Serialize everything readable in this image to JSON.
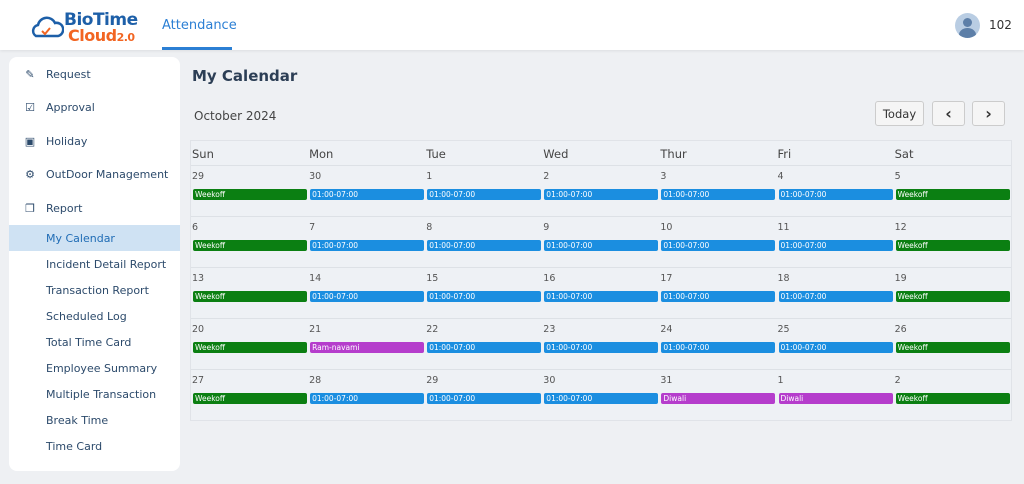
{
  "header": {
    "logo_line1": "BioTime",
    "logo_line2": "Cloud",
    "logo_version": "2.0",
    "nav_tab": "Attendance",
    "user": "102"
  },
  "sidebar": {
    "items": [
      {
        "label": "Request",
        "icon": "edit-icon"
      },
      {
        "label": "Approval",
        "icon": "checkbox-icon"
      },
      {
        "label": "Holiday",
        "icon": "calendar-plus-icon"
      },
      {
        "label": "OutDoor Management",
        "icon": "motorcycle-icon"
      },
      {
        "label": "Report",
        "icon": "report-icon"
      }
    ],
    "sub_items": [
      "My Calendar",
      "Incident Detail Report",
      "Transaction Report",
      "Scheduled Log",
      "Total Time Card",
      "Employee Summary",
      "Multiple Transaction",
      "Break Time",
      "Time Card"
    ],
    "active": "My Calendar"
  },
  "main": {
    "title": "My Calendar",
    "month": "October 2024",
    "today_label": "Today",
    "prev_label": "‹",
    "next_label": "›"
  },
  "colors": {
    "weekoff": "#0b7f12",
    "shift": "#1b8ee0",
    "holiday": "#b53dcc",
    "accent": "#2b7fd4"
  },
  "calendar": {
    "days": [
      "Sun",
      "Mon",
      "Tue",
      "Wed",
      "Thur",
      "Fri",
      "Sat"
    ],
    "weeks": [
      [
        {
          "d": "29",
          "e": "Weekoff",
          "t": "weekoff"
        },
        {
          "d": "30",
          "e": "01:00-07:00",
          "t": "shift"
        },
        {
          "d": "1",
          "e": "01:00-07:00",
          "t": "shift"
        },
        {
          "d": "2",
          "e": "01:00-07:00",
          "t": "shift"
        },
        {
          "d": "3",
          "e": "01:00-07:00",
          "t": "shift"
        },
        {
          "d": "4",
          "e": "01:00-07:00",
          "t": "shift"
        },
        {
          "d": "5",
          "e": "Weekoff",
          "t": "weekoff"
        }
      ],
      [
        {
          "d": "6",
          "e": "Weekoff",
          "t": "weekoff"
        },
        {
          "d": "7",
          "e": "01:00-07:00",
          "t": "shift"
        },
        {
          "d": "8",
          "e": "01:00-07:00",
          "t": "shift"
        },
        {
          "d": "9",
          "e": "01:00-07:00",
          "t": "shift"
        },
        {
          "d": "10",
          "e": "01:00-07:00",
          "t": "shift"
        },
        {
          "d": "11",
          "e": "01:00-07:00",
          "t": "shift"
        },
        {
          "d": "12",
          "e": "Weekoff",
          "t": "weekoff"
        }
      ],
      [
        {
          "d": "13",
          "e": "Weekoff",
          "t": "weekoff"
        },
        {
          "d": "14",
          "e": "01:00-07:00",
          "t": "shift"
        },
        {
          "d": "15",
          "e": "01:00-07:00",
          "t": "shift"
        },
        {
          "d": "16",
          "e": "01:00-07:00",
          "t": "shift"
        },
        {
          "d": "17",
          "e": "01:00-07:00",
          "t": "shift"
        },
        {
          "d": "18",
          "e": "01:00-07:00",
          "t": "shift"
        },
        {
          "d": "19",
          "e": "Weekoff",
          "t": "weekoff"
        }
      ],
      [
        {
          "d": "20",
          "e": "Weekoff",
          "t": "weekoff"
        },
        {
          "d": "21",
          "e": "Ram-navami",
          "t": "holiday"
        },
        {
          "d": "22",
          "e": "01:00-07:00",
          "t": "shift"
        },
        {
          "d": "23",
          "e": "01:00-07:00",
          "t": "shift"
        },
        {
          "d": "24",
          "e": "01:00-07:00",
          "t": "shift"
        },
        {
          "d": "25",
          "e": "01:00-07:00",
          "t": "shift"
        },
        {
          "d": "26",
          "e": "Weekoff",
          "t": "weekoff"
        }
      ],
      [
        {
          "d": "27",
          "e": "Weekoff",
          "t": "weekoff"
        },
        {
          "d": "28",
          "e": "01:00-07:00",
          "t": "shift"
        },
        {
          "d": "29",
          "e": "01:00-07:00",
          "t": "shift"
        },
        {
          "d": "30",
          "e": "01:00-07:00",
          "t": "shift"
        },
        {
          "d": "31",
          "e": "Diwali",
          "t": "holiday"
        },
        {
          "d": "1",
          "e": "Diwali",
          "t": "holiday"
        },
        {
          "d": "2",
          "e": "Weekoff",
          "t": "weekoff"
        }
      ]
    ]
  }
}
